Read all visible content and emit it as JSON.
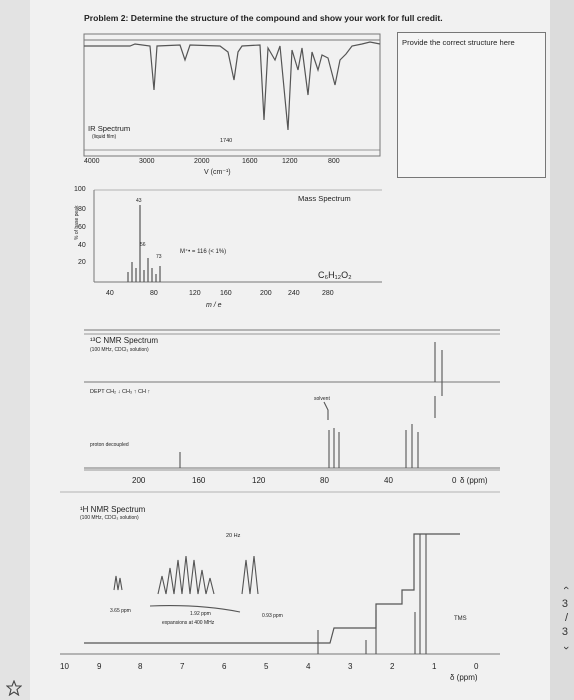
{
  "header": {
    "title": "Problem 2: Determine the structure of the compound and show your work for full credit."
  },
  "answer_box": {
    "label": "Provide the correct structure here"
  },
  "ir": {
    "title": "IR Spectrum",
    "subtitle": "(liquid film)",
    "peak": "1740",
    "ticks": [
      "4000",
      "3000",
      "2000",
      "1600",
      "1200",
      "800"
    ],
    "axis_label": "V  (cm⁻¹)"
  },
  "mass": {
    "title": "Mass Spectrum",
    "y_ticks": [
      "100",
      "80",
      "60",
      "40",
      "20"
    ],
    "y_label": "% of base peak",
    "peak_labels": [
      "43",
      "56",
      "73"
    ],
    "molecular_ion": "M⁺• = 116 (< 1%)",
    "formula": "C₆H₁₂O₂",
    "x_ticks": [
      "40",
      "80",
      "120",
      "160",
      "200",
      "240",
      "280"
    ],
    "x_label": "m / e"
  },
  "c13": {
    "title": "¹³C NMR Spectrum",
    "subtitle": "(100 MHz, CDCl₃ solution)",
    "dept": "DEPT  CH₂ ↓  CH₃ ↑  CH ↑",
    "solvent": "solvent",
    "decoupled": "proton decoupled",
    "x_ticks": [
      "200",
      "160",
      "120",
      "80",
      "40",
      "0"
    ],
    "x_label": "δ (ppm)"
  },
  "h1": {
    "title": "¹H NMR Spectrum",
    "subtitle": "(100 MHz, CDCl₃ solution)",
    "hz": "20 Hz",
    "exp1": "3.65  ppm",
    "exp2": "1.92  ppm",
    "exp2b": "expansions at 400 MHz",
    "exp3": "0.93  ppm",
    "tms": "TMS",
    "x_ticks": [
      "10",
      "9",
      "8",
      "7",
      "6",
      "5",
      "4",
      "3",
      "2",
      "1",
      "0"
    ],
    "x_label": "δ (ppm)"
  },
  "sidebar": {
    "up": "‹",
    "page": "3",
    "sep": "/",
    "total": "3",
    "down": "›"
  },
  "colors": {
    "paper": "#f1f1f1",
    "ink": "#555555",
    "grid": "#888888"
  }
}
